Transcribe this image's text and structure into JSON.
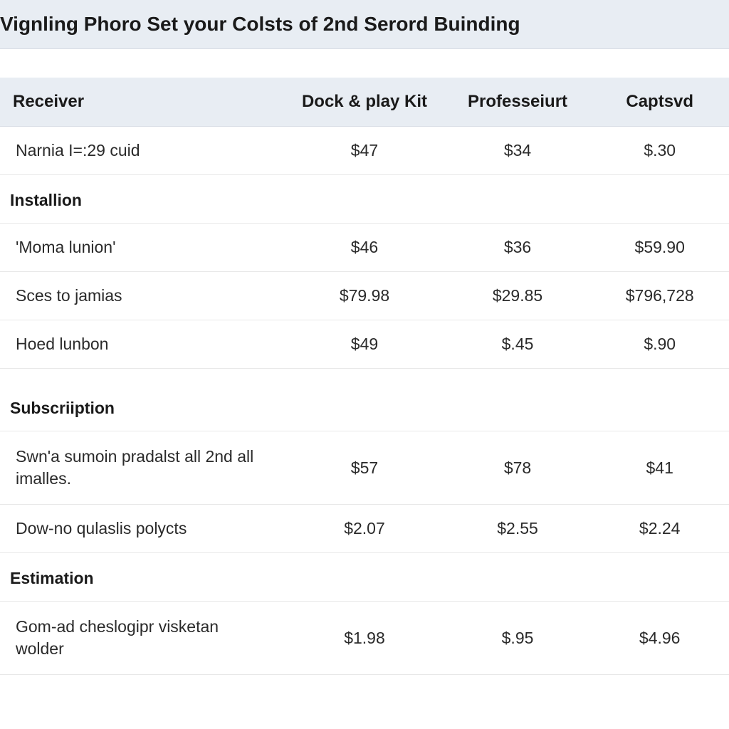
{
  "page": {
    "title": "Vignling Phoro Set your Colsts of 2nd Serord Buinding"
  },
  "table": {
    "columns": [
      "Receiver",
      "Dock & play Kit",
      "Professeiurt",
      "Captsvd"
    ],
    "column_widths_pct": [
      39,
      22,
      20,
      19
    ],
    "header_bg": "#e8edf3",
    "border_color": "#e8e8e8",
    "header_border_color": "#d8dde5",
    "text_color": "#2a2a2a",
    "header_text_color": "#1a1a1a",
    "font_size_header": 24,
    "font_size_cell": 23,
    "sections": [
      {
        "header": null,
        "rows": [
          {
            "label": "Narnia I=:29 cuid",
            "values": [
              "$47",
              "$34",
              "$.30"
            ]
          }
        ]
      },
      {
        "header": "Installion",
        "rows": [
          {
            "label": "'Moma lunion'",
            "values": [
              "$46",
              "$36",
              "$59.90"
            ]
          },
          {
            "label": "Sces to jamias",
            "values": [
              "$79.98",
              "$29.85",
              "$796,728"
            ]
          },
          {
            "label": "Hoed lunbon",
            "values": [
              "$49",
              "$.45",
              "$.90"
            ]
          }
        ]
      },
      {
        "header": "Subscriiption",
        "spaced": true,
        "rows": [
          {
            "label": "Swn'a sumoin pradalst all 2nd all imalles.",
            "values": [
              "$57",
              "$78",
              "$41"
            ],
            "multiline": true
          },
          {
            "label": "Dow-no qulaslis polycts",
            "values": [
              "$2.07",
              "$2.55",
              "$2.24"
            ]
          }
        ]
      },
      {
        "header": "Estimation",
        "rows": [
          {
            "label": "Gom-ad cheslogipr visketan wolder",
            "values": [
              "$1.98",
              "$.95",
              "$4.96"
            ],
            "multiline": true
          }
        ]
      }
    ]
  },
  "colors": {
    "page_bg": "#ffffff",
    "header_bar_bg": "#e8edf3"
  }
}
